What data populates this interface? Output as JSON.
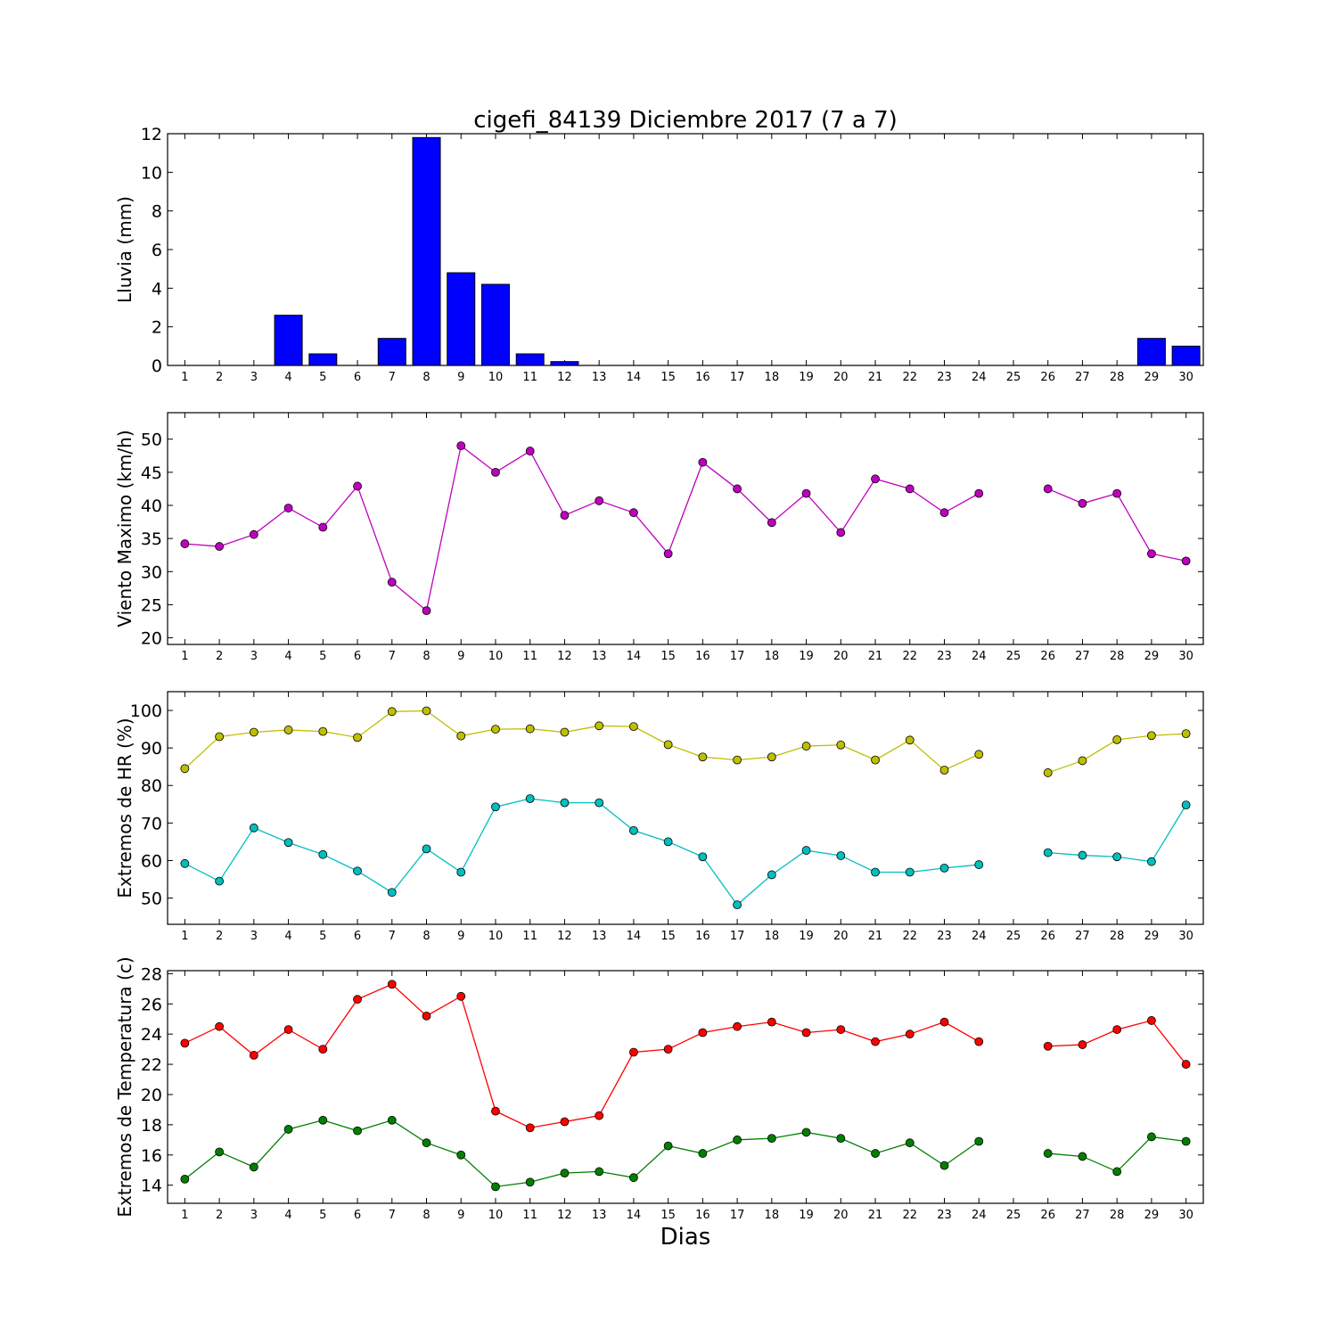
{
  "title": "cigefi_84139 Diciembre 2017  (7 a 7)",
  "xlabel": "Dias",
  "days": [
    1,
    2,
    3,
    4,
    5,
    6,
    7,
    8,
    9,
    10,
    11,
    12,
    13,
    14,
    15,
    16,
    17,
    18,
    19,
    20,
    21,
    22,
    23,
    24,
    25,
    26,
    27,
    28,
    29,
    30
  ],
  "chart_data": [
    {
      "type": "bar",
      "ylabel": "Lluvia (mm)",
      "ylim": [
        0,
        12
      ],
      "yticks": [
        0,
        2,
        4,
        6,
        8,
        10,
        12
      ],
      "series": [
        {
          "color": "#0000ff",
          "values": [
            0,
            0,
            0,
            2.6,
            0.6,
            0,
            1.4,
            11.8,
            4.8,
            4.2,
            0.6,
            0.2,
            0,
            0,
            0,
            0,
            0,
            0,
            0,
            0,
            0,
            0,
            0,
            0,
            0,
            0,
            0,
            0,
            1.4,
            1.0
          ]
        }
      ]
    },
    {
      "type": "line",
      "ylabel": "Viento Maximo (km/h)",
      "ylim": [
        19,
        54
      ],
      "yticks": [
        20,
        25,
        30,
        35,
        40,
        45,
        50
      ],
      "series": [
        {
          "color": "#bf00bf",
          "values": [
            34.2,
            33.8,
            35.6,
            39.6,
            36.7,
            42.9,
            28.4,
            24.1,
            49.0,
            45.0,
            48.2,
            38.5,
            40.7,
            38.9,
            32.7,
            46.5,
            42.5,
            37.4,
            41.8,
            35.9,
            44.0,
            42.5,
            38.9,
            41.8,
            null,
            42.5,
            40.3,
            41.8,
            32.7,
            31.6
          ]
        }
      ]
    },
    {
      "type": "line",
      "ylabel": "Extremos de HR (%)",
      "ylim": [
        43,
        105
      ],
      "yticks": [
        50,
        60,
        70,
        80,
        90,
        100
      ],
      "series": [
        {
          "color": "#bfbf00",
          "values": [
            84.5,
            93.0,
            94.2,
            94.8,
            94.4,
            92.8,
            99.7,
            99.9,
            93.2,
            95.0,
            95.1,
            94.2,
            95.9,
            95.7,
            90.9,
            87.6,
            86.8,
            87.6,
            90.5,
            90.8,
            86.8,
            92.1,
            84.1,
            88.3,
            null,
            83.4,
            86.6,
            92.2,
            93.3,
            93.8
          ]
        },
        {
          "color": "#00bfbf",
          "values": [
            59.2,
            54.5,
            68.7,
            64.8,
            61.6,
            57.2,
            51.5,
            63.1,
            56.9,
            74.3,
            76.5,
            75.4,
            75.4,
            68.0,
            65.0,
            61.0,
            48.2,
            56.2,
            62.7,
            61.3,
            56.9,
            56.9,
            58.0,
            58.9,
            null,
            62.1,
            61.4,
            61.0,
            59.7,
            74.8
          ]
        }
      ]
    },
    {
      "type": "line",
      "ylabel": "Extremos de Temperatura (c)",
      "ylim": [
        12.8,
        28.2
      ],
      "yticks": [
        14,
        16,
        18,
        20,
        22,
        24,
        26,
        28
      ],
      "series": [
        {
          "color": "#ff0000",
          "values": [
            23.4,
            24.5,
            22.6,
            24.3,
            23.0,
            26.3,
            27.3,
            25.2,
            26.5,
            18.9,
            17.8,
            18.2,
            18.6,
            22.8,
            23.0,
            24.1,
            24.5,
            24.8,
            24.1,
            24.3,
            23.5,
            24.0,
            24.8,
            23.5,
            null,
            23.2,
            23.3,
            24.3,
            24.9,
            22.0
          ]
        },
        {
          "color": "#007f00",
          "values": [
            14.4,
            16.2,
            15.2,
            17.7,
            18.3,
            17.6,
            18.3,
            16.8,
            16.0,
            13.9,
            14.2,
            14.8,
            14.9,
            14.5,
            16.6,
            16.1,
            17.0,
            17.1,
            17.5,
            17.1,
            16.1,
            16.8,
            15.3,
            16.9,
            null,
            16.1,
            15.9,
            14.9,
            17.2,
            16.9
          ]
        }
      ]
    }
  ]
}
